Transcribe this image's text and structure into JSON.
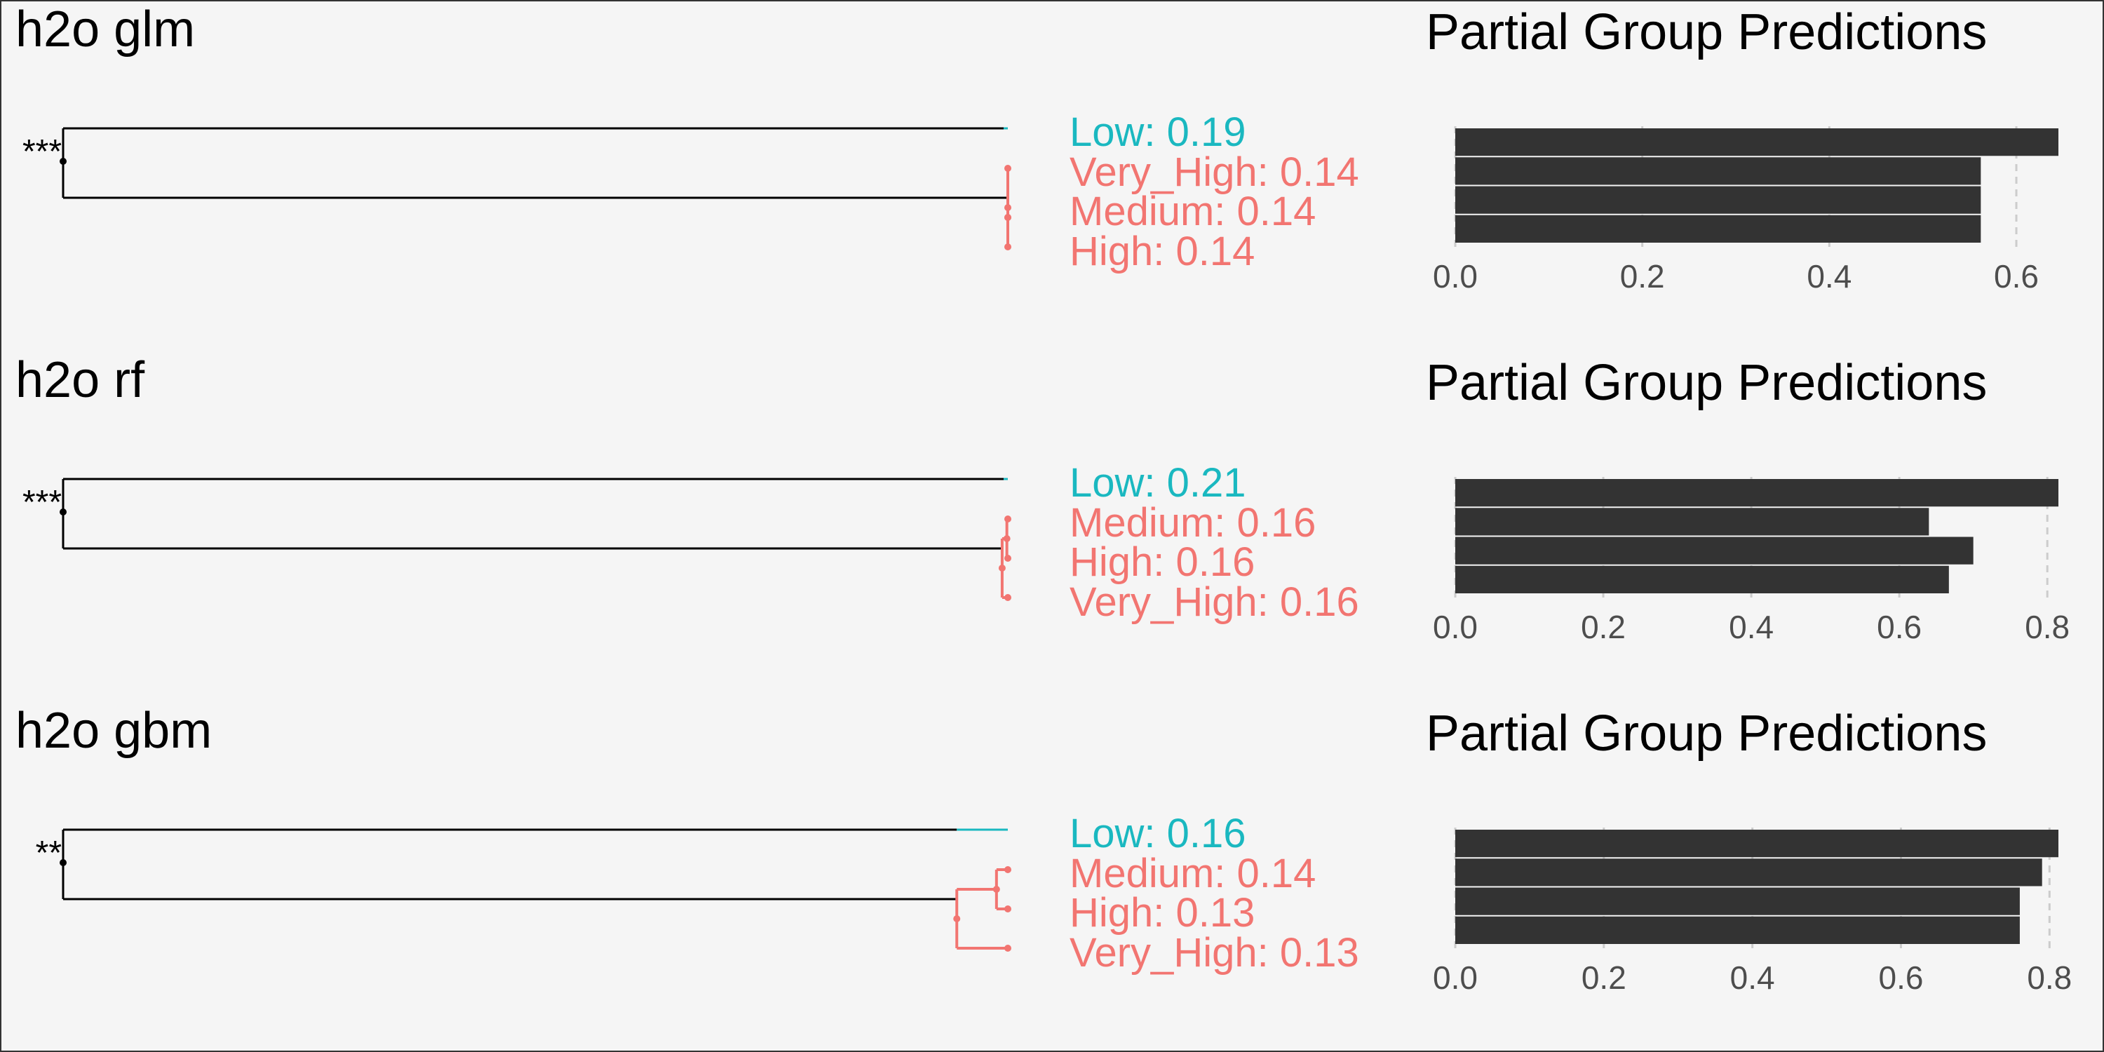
{
  "colors": {
    "background": "#f5f5f5",
    "tree_line": "#000000",
    "low_group": "#1ab8c0",
    "high_group": "#f27571",
    "bar_fill": "#333333",
    "grid": "#cccccc",
    "tick_text": "#4d4d4d"
  },
  "chart_data": [
    {
      "type": "dendrogram",
      "title": "h2o glm",
      "significance": "***",
      "leaves": [
        {
          "label": "Low: 0.19",
          "group": "low"
        },
        {
          "label": "Very_High: 0.14",
          "group": "high"
        },
        {
          "label": "Medium: 0.14",
          "group": "high"
        },
        {
          "label": "High: 0.14",
          "group": "high"
        }
      ],
      "cluster_heights": {
        "low_branch": 0.0,
        "high_cluster": 0.0,
        "high_sub_pair": 0.0
      },
      "height_range": [
        0,
        1
      ]
    },
    {
      "type": "bar",
      "orientation": "horizontal",
      "title": "Partial Group Predictions",
      "values": [
        0.645,
        0.562,
        0.562,
        0.562
      ],
      "xlim": [
        0,
        0.645
      ],
      "ticks": [
        0.0,
        0.2,
        0.4,
        0.6
      ],
      "tick_labels": [
        "0.0",
        "0.2",
        "0.4",
        "0.6"
      ],
      "grid": true
    },
    {
      "type": "dendrogram",
      "title": "h2o rf",
      "significance": "***",
      "leaves": [
        {
          "label": "Low: 0.21",
          "group": "low"
        },
        {
          "label": "Medium: 0.16",
          "group": "high"
        },
        {
          "label": "High: 0.16",
          "group": "high"
        },
        {
          "label": "Very_High: 0.16",
          "group": "high"
        }
      ],
      "cluster_heights": {
        "low_branch": 0.0,
        "high_cluster": 0.006,
        "high_sub_pair": 0.001
      },
      "height_range": [
        0,
        1
      ]
    },
    {
      "type": "bar",
      "orientation": "horizontal",
      "title": "Partial Group Predictions",
      "values": [
        0.815,
        0.64,
        0.7,
        0.667
      ],
      "xlim": [
        0,
        0.815
      ],
      "ticks": [
        0.0,
        0.2,
        0.4,
        0.6,
        0.8
      ],
      "tick_labels": [
        "0.0",
        "0.2",
        "0.4",
        "0.6",
        "0.8"
      ],
      "grid": true
    },
    {
      "type": "dendrogram",
      "title": "h2o gbm",
      "significance": "**",
      "leaves": [
        {
          "label": "Low: 0.16",
          "group": "low"
        },
        {
          "label": "Medium: 0.14",
          "group": "high"
        },
        {
          "label": "High: 0.13",
          "group": "high"
        },
        {
          "label": "Very_High: 0.13",
          "group": "high"
        }
      ],
      "cluster_heights": {
        "low_branch": 0.054,
        "high_cluster": 0.054,
        "high_sub_pair": 0.012
      },
      "height_range": [
        0,
        1
      ]
    },
    {
      "type": "bar",
      "orientation": "horizontal",
      "title": "Partial Group Predictions",
      "values": [
        0.812,
        0.79,
        0.76,
        0.76
      ],
      "xlim": [
        0,
        0.812
      ],
      "ticks": [
        0.0,
        0.2,
        0.4,
        0.6,
        0.8
      ],
      "tick_labels": [
        "0.0",
        "0.2",
        "0.4",
        "0.6",
        "0.8"
      ],
      "grid": true
    }
  ]
}
